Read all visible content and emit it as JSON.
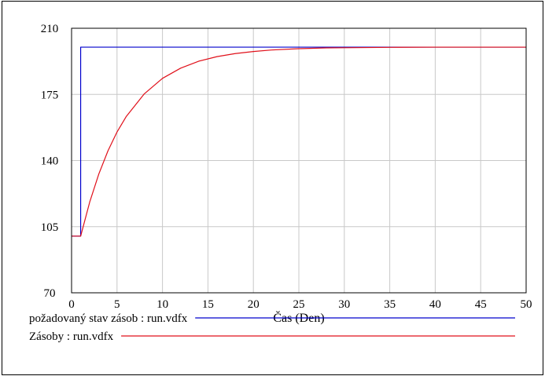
{
  "chart_data": {
    "type": "line",
    "xlabel": "Čas (Den)",
    "ylabel": "",
    "xlim": [
      0,
      50
    ],
    "ylim": [
      70,
      210
    ],
    "x_ticks": [
      0,
      5,
      10,
      15,
      20,
      25,
      30,
      35,
      40,
      45,
      50
    ],
    "y_ticks": [
      70,
      105,
      140,
      175,
      210
    ],
    "grid": true,
    "legend_position": "bottom",
    "series": [
      {
        "name": "požadovaný stav zásob : run.vdfx",
        "color": "#0000cc",
        "x": [
          0,
          1,
          1,
          50
        ],
        "y": [
          100,
          100,
          200,
          200
        ]
      },
      {
        "name": "Zásoby : run.vdfx",
        "color": "#e0101a",
        "x": [
          0,
          1,
          2,
          3,
          4,
          5,
          6,
          8,
          10,
          12,
          14,
          16,
          18,
          20,
          22,
          25,
          28,
          30,
          35,
          40,
          45,
          50
        ],
        "y": [
          100,
          100,
          118.1,
          132.9,
          145.1,
          155.1,
          163.2,
          175.3,
          183.5,
          188.9,
          192.6,
          195.0,
          196.6,
          197.7,
          198.5,
          199.2,
          199.6,
          199.7,
          199.9,
          200.0,
          200.0,
          200.0
        ]
      }
    ]
  }
}
